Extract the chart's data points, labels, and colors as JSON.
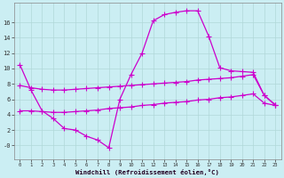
{
  "xlabel": "Windchill (Refroidissement éolien,°C)",
  "bg_color": "#cbeef3",
  "grid_color": "#b0d8d8",
  "line_color": "#cc00cc",
  "xlim": [
    -0.5,
    23.5
  ],
  "ylim": [
    -1.8,
    18.5
  ],
  "xticks": [
    0,
    1,
    2,
    3,
    4,
    5,
    6,
    7,
    8,
    9,
    10,
    11,
    12,
    13,
    14,
    15,
    16,
    17,
    18,
    19,
    20,
    21,
    22,
    23
  ],
  "yticks": [
    0,
    2,
    4,
    6,
    8,
    10,
    12,
    14,
    16
  ],
  "ytick_labels": [
    "-0",
    "2",
    "4",
    "6",
    "8",
    "10",
    "12",
    "14",
    "16"
  ],
  "line1_x": [
    0,
    1,
    2,
    3,
    4,
    5,
    6,
    7,
    8,
    9,
    10,
    11,
    12,
    13,
    14,
    15,
    16,
    17,
    18,
    19,
    20,
    21,
    22,
    23
  ],
  "line1_y": [
    10.5,
    7.2,
    4.5,
    3.5,
    2.2,
    2.0,
    1.2,
    0.7,
    -0.3,
    6.0,
    9.2,
    12.0,
    16.2,
    17.0,
    17.3,
    17.5,
    17.5,
    14.2,
    10.1,
    9.7,
    9.6,
    9.5,
    6.5,
    5.2
  ],
  "line2_x": [
    0,
    1,
    2,
    3,
    4,
    5,
    6,
    7,
    8,
    9,
    10,
    11,
    12,
    13,
    14,
    15,
    16,
    17,
    18,
    19,
    20,
    21,
    22,
    23
  ],
  "line2_y": [
    7.8,
    7.5,
    7.3,
    7.2,
    7.2,
    7.3,
    7.4,
    7.5,
    7.6,
    7.7,
    7.8,
    7.9,
    8.0,
    8.1,
    8.2,
    8.3,
    8.5,
    8.6,
    8.7,
    8.8,
    9.0,
    9.2,
    6.5,
    5.3
  ],
  "line3_x": [
    0,
    1,
    2,
    3,
    4,
    5,
    6,
    7,
    8,
    9,
    10,
    11,
    12,
    13,
    14,
    15,
    16,
    17,
    18,
    19,
    20,
    21,
    22,
    23
  ],
  "line3_y": [
    4.5,
    4.5,
    4.4,
    4.3,
    4.3,
    4.4,
    4.5,
    4.6,
    4.8,
    4.9,
    5.0,
    5.2,
    5.3,
    5.5,
    5.6,
    5.7,
    5.9,
    6.0,
    6.2,
    6.3,
    6.5,
    6.7,
    5.5,
    5.2
  ]
}
